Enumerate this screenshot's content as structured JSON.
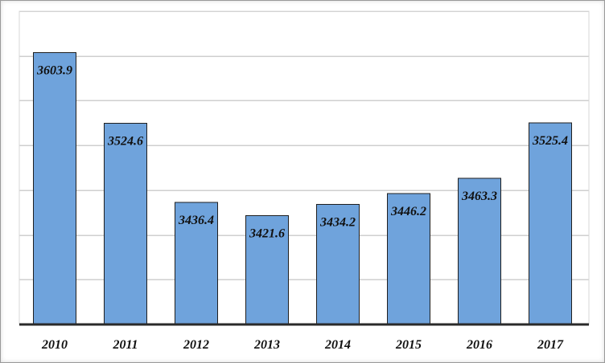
{
  "chart_data": {
    "type": "bar",
    "categories": [
      "2010",
      "2011",
      "2012",
      "2013",
      "2014",
      "2015",
      "2016",
      "2017"
    ],
    "values": [
      3603.9,
      3524.6,
      3436.4,
      3421.6,
      3434.2,
      3446.2,
      3463.3,
      3525.4
    ],
    "data_labels": [
      "3603.9",
      "3524.6",
      "3436.4",
      "3421.6",
      "3434.2",
      "3446.2",
      "3463.3",
      "3525.4"
    ],
    "title": "",
    "xlabel": "",
    "ylabel": "",
    "ylim": [
      3300,
      3650
    ],
    "ytick_labels_visible": false,
    "grid": true,
    "legend": false,
    "colors": {
      "bar_fill": "#6fa3dc",
      "bar_edge": "#1f1f1f",
      "grid": "#cfcfcf",
      "axis": "#2a2a2a",
      "text": "#111111"
    }
  }
}
